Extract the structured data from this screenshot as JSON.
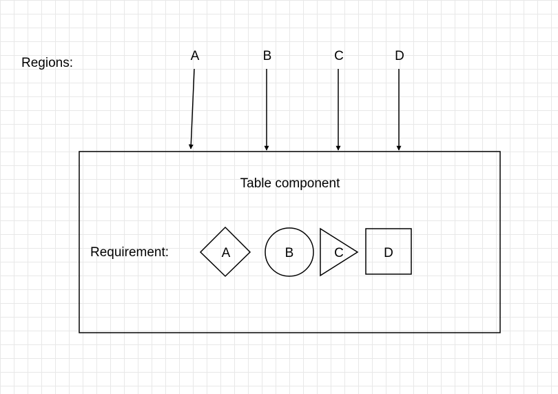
{
  "regions": {
    "label": "Regions:",
    "arrows": [
      "A",
      "B",
      "C",
      "D"
    ]
  },
  "table_component": {
    "title": "Table component",
    "requirement_label": "Requirement:",
    "shapes": [
      {
        "label": "A",
        "shape": "diamond"
      },
      {
        "label": "B",
        "shape": "circle"
      },
      {
        "label": "C",
        "shape": "triangle"
      },
      {
        "label": "D",
        "shape": "square"
      }
    ]
  }
}
